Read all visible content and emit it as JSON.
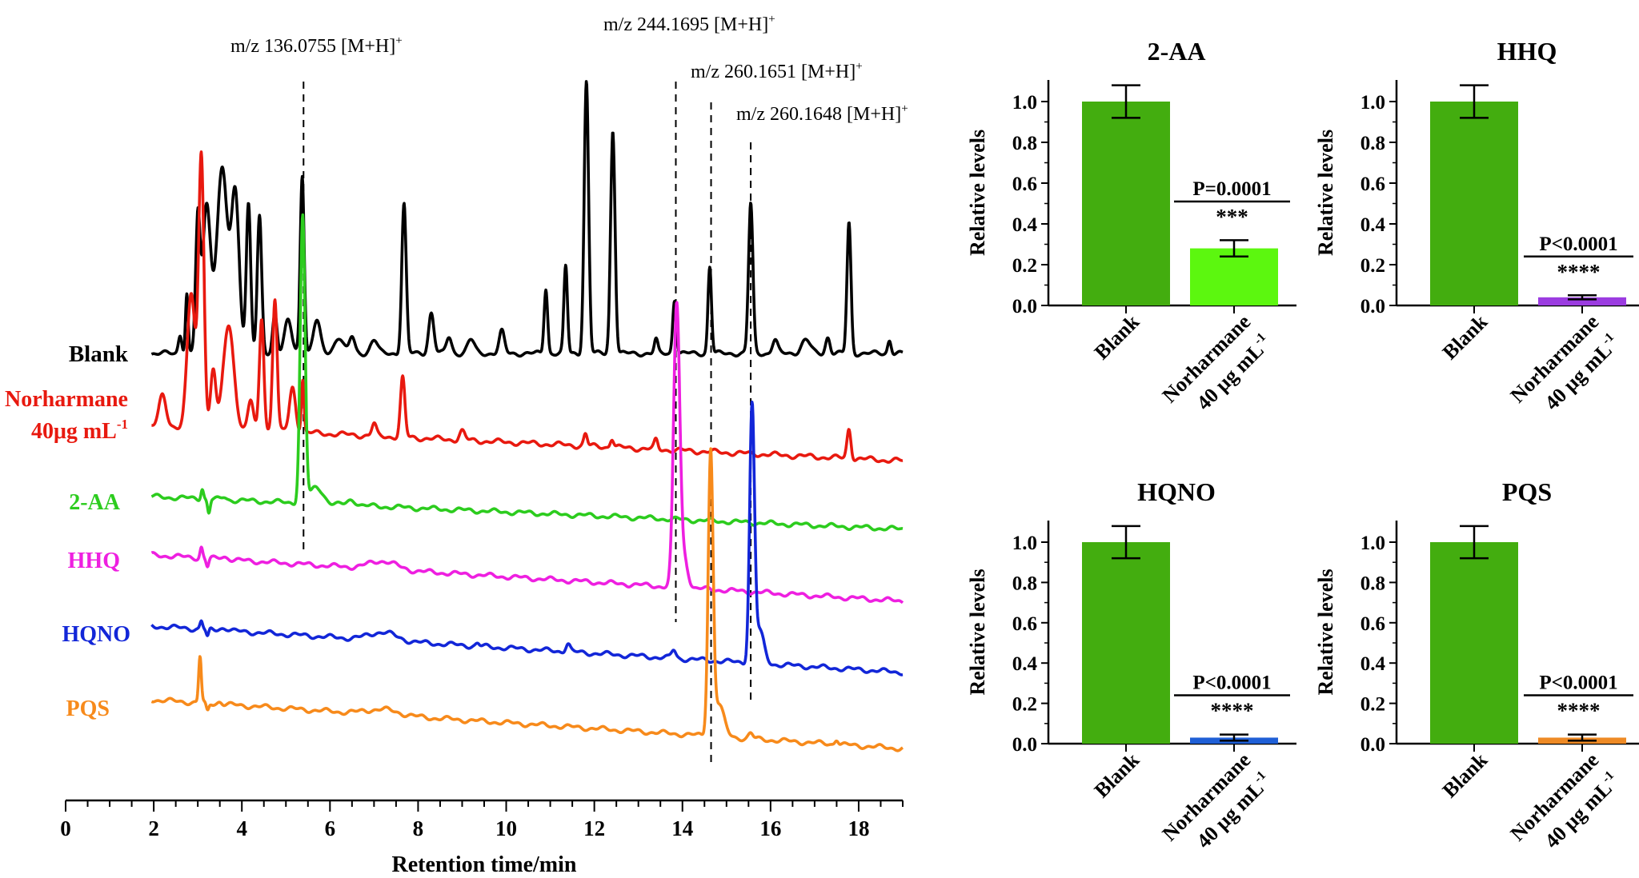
{
  "colors": {
    "blank": "#000000",
    "norharmane": "#e8190f",
    "aa": "#2ccc1e",
    "hhq": "#ee1fe0",
    "hqno": "#1226d8",
    "pqs": "#f78a1b",
    "bar_blank": "#43ad0f",
    "bar_2aa": "#5cf70f",
    "bar_hhq": "#9b3ce0",
    "bar_hqno": "#1f5fd6",
    "bar_pqs": "#ee8a25"
  },
  "chart_data": [
    {
      "type": "line",
      "title": "",
      "xlabel": "Retention time/min",
      "ylabel": "",
      "xlim": [
        0,
        19
      ],
      "xticks": [
        "0",
        "2",
        "4",
        "6",
        "8",
        "10",
        "12",
        "14",
        "16",
        "18"
      ],
      "annotations": [
        {
          "mz": "m/z 136.0755 [M+H]",
          "sup": "+",
          "x": 5.4
        },
        {
          "mz": "m/z 244.1695 [M+H]",
          "sup": "+",
          "x": 13.85
        },
        {
          "mz": "m/z 260.1651 [M+H]",
          "sup": "+",
          "x": 14.65
        },
        {
          "mz": "m/z 260.1648 [M+H]",
          "sup": "+",
          "x": 15.55
        }
      ],
      "series": [
        {
          "key": "blank",
          "name": "Blank",
          "base_start": 0,
          "base_end": 0,
          "peaks": [
            [
              2.6,
              0.07,
              0.04
            ],
            [
              2.75,
              0.22,
              0.03
            ],
            [
              3.0,
              0.48,
              0.05
            ],
            [
              3.2,
              0.55,
              0.09
            ],
            [
              3.55,
              0.68,
              0.12
            ],
            [
              3.85,
              0.58,
              0.09
            ],
            [
              4.15,
              0.55,
              0.05
            ],
            [
              4.4,
              0.5,
              0.05
            ],
            [
              4.75,
              0.15,
              0.05
            ],
            [
              5.05,
              0.12,
              0.08
            ],
            [
              5.37,
              0.66,
              0.045
            ],
            [
              5.7,
              0.12,
              0.08
            ],
            [
              6.2,
              0.06,
              0.1
            ],
            [
              6.5,
              0.06,
              0.06
            ],
            [
              7.0,
              0.05,
              0.08
            ],
            [
              7.68,
              0.55,
              0.05
            ],
            [
              8.3,
              0.15,
              0.06
            ],
            [
              8.7,
              0.06,
              0.06
            ],
            [
              9.2,
              0.05,
              0.08
            ],
            [
              9.9,
              0.08,
              0.06
            ],
            [
              10.9,
              0.24,
              0.04
            ],
            [
              11.35,
              0.32,
              0.04
            ],
            [
              11.82,
              1.0,
              0.05
            ],
            [
              12.42,
              0.82,
              0.05
            ],
            [
              13.4,
              0.05,
              0.04
            ],
            [
              13.82,
              0.2,
              0.04
            ],
            [
              14.62,
              0.32,
              0.04
            ],
            [
              15.55,
              0.55,
              0.05
            ],
            [
              16.1,
              0.05,
              0.06
            ],
            [
              16.8,
              0.05,
              0.1
            ],
            [
              17.3,
              0.06,
              0.05
            ],
            [
              17.78,
              0.48,
              0.045
            ],
            [
              18.7,
              0.05,
              0.04
            ]
          ]
        },
        {
          "key": "norharmane",
          "name": "Norharmane",
          "name2": "40μg mL",
          "name2sup": "-1",
          "base_start": 0,
          "base_end": -0.12,
          "peaks": [
            [
              2.2,
              0.1,
              0.08
            ],
            [
              2.85,
              0.45,
              0.09
            ],
            [
              3.08,
              0.92,
              0.06
            ],
            [
              3.35,
              0.2,
              0.06
            ],
            [
              3.7,
              0.35,
              0.12
            ],
            [
              4.2,
              0.1,
              0.06
            ],
            [
              4.45,
              0.38,
              0.05
            ],
            [
              4.75,
              0.45,
              0.05
            ],
            [
              5.15,
              0.15,
              0.07
            ],
            [
              5.38,
              0.18,
              0.03
            ],
            [
              7.0,
              0.04,
              0.05
            ],
            [
              7.65,
              0.2,
              0.05
            ],
            [
              9.0,
              0.03,
              0.06
            ],
            [
              11.8,
              0.04,
              0.04
            ],
            [
              12.4,
              0.03,
              0.04
            ],
            [
              13.4,
              0.03,
              0.04
            ],
            [
              17.78,
              0.1,
              0.045
            ]
          ]
        },
        {
          "key": "aa",
          "name": "2-AA",
          "base_start": 0,
          "base_end": -0.12,
          "peaks": [
            [
              3.1,
              0.04,
              0.03
            ],
            [
              3.25,
              -0.05,
              0.03
            ],
            [
              3.6,
              0.01,
              0.05
            ],
            [
              5.38,
              1.05,
              0.055
            ],
            [
              5.7,
              0.06,
              0.15
            ],
            [
              6.5,
              0.02,
              0.1
            ]
          ]
        },
        {
          "key": "hhq",
          "name": "HHQ",
          "base_start": 0,
          "base_end": -0.17,
          "peaks": [
            [
              3.08,
              0.04,
              0.03
            ],
            [
              3.22,
              -0.03,
              0.03
            ],
            [
              3.6,
              0.01,
              0.1
            ],
            [
              7.2,
              0.03,
              0.3
            ],
            [
              13.87,
              1.04,
              0.07
            ],
            [
              14.05,
              0.1,
              0.08
            ]
          ]
        },
        {
          "key": "hqno",
          "name": "HQNO",
          "base_start": 0,
          "base_end": -0.17,
          "peaks": [
            [
              3.08,
              0.03,
              0.03
            ],
            [
              3.22,
              -0.03,
              0.03
            ],
            [
              3.6,
              0.01,
              0.1
            ],
            [
              7.2,
              0.03,
              0.3
            ],
            [
              9.35,
              0.01,
              0.04
            ],
            [
              11.4,
              0.03,
              0.05
            ],
            [
              13.8,
              0.03,
              0.05
            ],
            [
              15.58,
              0.93,
              0.055
            ],
            [
              15.75,
              0.12,
              0.1
            ]
          ]
        },
        {
          "key": "pqs",
          "name": "PQS",
          "base_start": 0,
          "base_end": -0.18,
          "peaks": [
            [
              3.05,
              0.17,
              0.03
            ],
            [
              3.22,
              -0.03,
              0.03
            ],
            [
              3.5,
              0.01,
              0.05
            ],
            [
              7.2,
              0.02,
              0.35
            ],
            [
              14.64,
              1.02,
              0.055
            ],
            [
              14.82,
              0.12,
              0.12
            ],
            [
              15.55,
              0.02,
              0.05
            ],
            [
              17.5,
              0.02,
              0.04
            ]
          ]
        }
      ]
    },
    {
      "type": "bar",
      "title": "2-AA",
      "ylabel": "Relative levels",
      "ylim": [
        0,
        1.1
      ],
      "yticks": [
        "0.0",
        "0.2",
        "0.4",
        "0.6",
        "0.8",
        "1.0"
      ],
      "categories": [
        [
          "Blank"
        ],
        [
          "Norharmane",
          "40 μg mL",
          "-1"
        ]
      ],
      "values": [
        1.0,
        0.28
      ],
      "errors": [
        0.08,
        0.04
      ],
      "colorKeys": [
        "bar_blank",
        "bar_2aa"
      ],
      "pvalue": "P=0.0001",
      "stars": "***"
    },
    {
      "type": "bar",
      "title": "HHQ",
      "ylabel": "Relative levels",
      "ylim": [
        0,
        1.1
      ],
      "yticks": [
        "0.0",
        "0.2",
        "0.4",
        "0.6",
        "0.8",
        "1.0"
      ],
      "categories": [
        [
          "Blank"
        ],
        [
          "Norharmane",
          "40 μg mL",
          "-1"
        ]
      ],
      "values": [
        1.0,
        0.04
      ],
      "errors": [
        0.08,
        0.01
      ],
      "colorKeys": [
        "bar_blank",
        "bar_hhq"
      ],
      "pvalue": "P<0.0001",
      "stars": "****"
    },
    {
      "type": "bar",
      "title": "HQNO",
      "ylabel": "Relative levels",
      "ylim": [
        0,
        1.1
      ],
      "yticks": [
        "0.0",
        "0.2",
        "0.4",
        "0.6",
        "0.8",
        "1.0"
      ],
      "categories": [
        [
          "Blank"
        ],
        [
          "Norharmane",
          "40 μg mL",
          "-1"
        ]
      ],
      "values": [
        1.0,
        0.03
      ],
      "errors": [
        0.08,
        0.015
      ],
      "colorKeys": [
        "bar_blank",
        "bar_hqno"
      ],
      "pvalue": "P<0.0001",
      "stars": "****"
    },
    {
      "type": "bar",
      "title": "PQS",
      "ylabel": "Relative levels",
      "ylim": [
        0,
        1.1
      ],
      "yticks": [
        "0.0",
        "0.2",
        "0.4",
        "0.6",
        "0.8",
        "1.0"
      ],
      "categories": [
        [
          "Blank"
        ],
        [
          "Norharmane",
          "40 μg mL",
          "-1"
        ]
      ],
      "values": [
        1.0,
        0.03
      ],
      "errors": [
        0.08,
        0.015
      ],
      "colorKeys": [
        "bar_blank",
        "bar_pqs"
      ],
      "pvalue": "P<0.0001",
      "stars": "****"
    }
  ]
}
